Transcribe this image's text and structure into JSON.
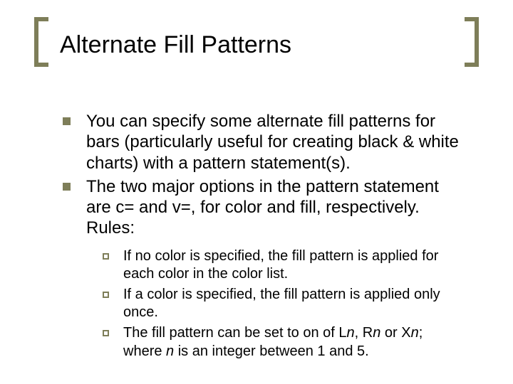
{
  "slide": {
    "title": "Alternate Fill Patterns",
    "bracket_color": "#7e7e59",
    "bullet_fill_color": "#7e7e59",
    "background_color": "#ffffff",
    "title_fontsize": 34,
    "body_fontsize": 24,
    "sub_fontsize": 20,
    "bullets": [
      {
        "text": "You can specify some alternate fill patterns for bars (particularly useful for creating black & white charts) with a pattern statement(s)."
      },
      {
        "text": "The two major options in the pattern statement are c= and v=, for color and fill, respectively.  Rules:"
      }
    ],
    "sub_bullets": [
      {
        "text": "If no color is specified, the fill pattern is applied for each color in the color list."
      },
      {
        "text": "If a color is specified, the fill pattern is applied only once."
      },
      {
        "prefix": "The fill pattern can be set to on of L",
        "n1": "n",
        "mid1": ", R",
        "n2": "n",
        "mid2": " or X",
        "n3": "n",
        "mid3": "; where ",
        "n4": "n",
        "suffix": " is an integer between 1 and 5."
      }
    ]
  }
}
